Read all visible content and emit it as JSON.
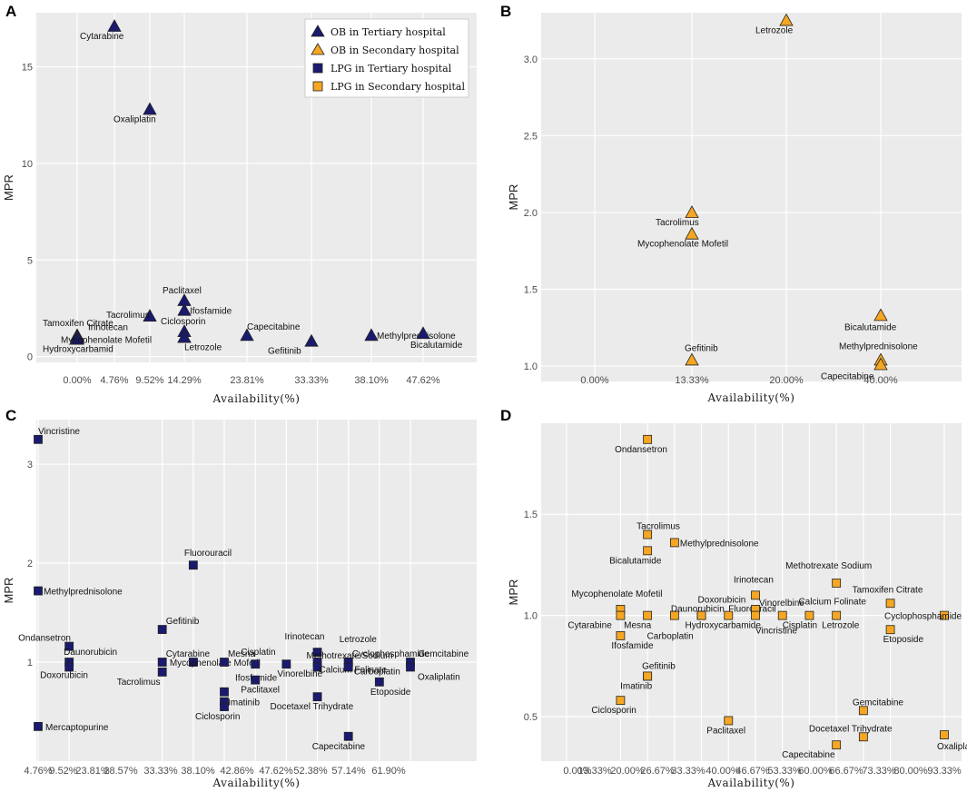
{
  "chart_data": [
    {
      "panel": "A",
      "type": "scatter",
      "xlabel": "Availability(%)",
      "ylabel": "MPR",
      "x_ticks": [
        "0.00%",
        "4.76%",
        "9.52%",
        "14.29%",
        "23.81%",
        "33.33%",
        "38.10%",
        "47.62%"
      ],
      "y_ticks": [
        0,
        5,
        10,
        15
      ],
      "ylim": [
        -0.3,
        17.8
      ],
      "colors": {
        "series": "#1a1a6e"
      },
      "legend": [
        {
          "label": "OB in Tertiary hospital",
          "shape": "triangle",
          "color": "#1a1a6e"
        },
        {
          "label": "OB in Secondary hospital",
          "shape": "triangle",
          "color": "#f5a623"
        },
        {
          "label": "LPG in Tertiary  hospital",
          "shape": "square",
          "color": "#1a1a6e"
        },
        {
          "label": "LPG in Secondary hospital",
          "shape": "square",
          "color": "#f5a623"
        }
      ],
      "points": [
        {
          "x": "4.76%",
          "y": 17.1,
          "label": "Cytarabine"
        },
        {
          "x": "9.52%",
          "y": 12.8,
          "label": "Oxaliplatin"
        },
        {
          "x": "14.29%",
          "y": 2.9,
          "label": "Paclitaxel"
        },
        {
          "x": "14.29%",
          "y": 2.4,
          "label": "Ifosfamide"
        },
        {
          "x": "9.52%",
          "y": 2.1,
          "label": "Tacrolimus"
        },
        {
          "x": "0.00%",
          "y": 1.1,
          "label": "Tamoxifen Citrate"
        },
        {
          "x": "0.00%",
          "y": 1.0,
          "label": "Irinotecan"
        },
        {
          "x": "0.00%",
          "y": 0.9,
          "label": "Hydroxycarbamid"
        },
        {
          "x": "14.29%",
          "y": 1.3,
          "label": "Ciclosporin"
        },
        {
          "x": "14.29%",
          "y": 1.0,
          "label": "Mycophenolate Mofetil"
        },
        {
          "x": "14.29%",
          "y": 1.0,
          "label": "Letrozole"
        },
        {
          "x": "23.81%",
          "y": 1.1,
          "label": "Capecitabine"
        },
        {
          "x": "33.33%",
          "y": 0.8,
          "label": "Gefitinib"
        },
        {
          "x": "38.10%",
          "y": 1.1,
          "label": "Methylprednisolone"
        },
        {
          "x": "47.62%",
          "y": 1.2,
          "label": "Bicalutamide"
        }
      ]
    },
    {
      "panel": "B",
      "type": "scatter",
      "xlabel": "Availability(%)",
      "ylabel": "MPR",
      "x_ticks": [
        "0.00%",
        "13.33%",
        "20.00%",
        "40.00%"
      ],
      "y_ticks": [
        1.0,
        1.5,
        2.0,
        2.5,
        3.0
      ],
      "ylim": [
        0.9,
        3.3
      ],
      "colors": {
        "series": "#f5a623"
      },
      "points": [
        {
          "x": "20.00%",
          "y": 3.25,
          "label": "Letrozole"
        },
        {
          "x": "13.33%",
          "y": 2.0,
          "label": "Tacrolimus"
        },
        {
          "x": "13.33%",
          "y": 1.86,
          "label": "Mycophenolate Mofetil"
        },
        {
          "x": "40.00%",
          "y": 1.33,
          "label": "Bicalutamide"
        },
        {
          "x": "13.33%",
          "y": 1.04,
          "label": "Gefitinib"
        },
        {
          "x": "40.00%",
          "y": 1.04,
          "label": "Methylprednisolone"
        },
        {
          "x": "40.00%",
          "y": 1.01,
          "label": "Capecitabine"
        }
      ]
    },
    {
      "panel": "C",
      "type": "scatter",
      "xlabel": "Availability(%)",
      "ylabel": "MPR",
      "x_ticks": [
        "4.76%",
        "9.52%",
        "23.81%",
        "28.57%",
        "33.33%",
        "38.10%",
        "42.86%",
        "47.62%",
        "52.38%",
        "57.14%",
        "61.90%"
      ],
      "y_ticks": [
        1,
        2,
        3
      ],
      "ylim": [
        0.0,
        3.45
      ],
      "colors": {
        "series": "#1a1a6e"
      },
      "points": [
        {
          "x": 4.76,
          "y": 3.25,
          "label": "Vincristine"
        },
        {
          "x": 28.57,
          "y": 1.98,
          "label": "Fluorouracil"
        },
        {
          "x": 4.76,
          "y": 1.72,
          "label": "Methylprednisolone"
        },
        {
          "x": 23.81,
          "y": 1.33,
          "label": "Gefitinib"
        },
        {
          "x": 9.52,
          "y": 1.16,
          "label": "Ondansetron"
        },
        {
          "x": 23.81,
          "y": 1.0,
          "label": "Cytarabine"
        },
        {
          "x": 9.52,
          "y": 1.0,
          "label": "Daunorubicin"
        },
        {
          "x": 9.52,
          "y": 0.95,
          "label": "Doxorubicin"
        },
        {
          "x": 23.81,
          "y": 0.9,
          "label": "Tacrolimus"
        },
        {
          "x": 28.57,
          "y": 1.0,
          "label": "Mycophenolate Mofetil"
        },
        {
          "x": 33.33,
          "y": 1.0,
          "label": "Mesna"
        },
        {
          "x": 33.33,
          "y": 0.7,
          "label": "Ifosfamide"
        },
        {
          "x": 33.33,
          "y": 0.6,
          "label": "Imatinib"
        },
        {
          "x": 33.33,
          "y": 0.55,
          "label": "Ciclosporin"
        },
        {
          "x": 38.1,
          "y": 0.98,
          "label": "Cisplatin"
        },
        {
          "x": 38.1,
          "y": 0.82,
          "label": "Paclitaxel"
        },
        {
          "x": 42.86,
          "y": 0.98,
          "label": "Vinorelbine"
        },
        {
          "x": 47.62,
          "y": 1.1,
          "label": "Irinotecan"
        },
        {
          "x": 47.62,
          "y": 1.0,
          "label": "Methotrexate Sodium"
        },
        {
          "x": 47.62,
          "y": 0.95,
          "label": "Calcium Folinate"
        },
        {
          "x": 47.62,
          "y": 0.65,
          "label": "Docetaxel Trihydrate"
        },
        {
          "x": 52.38,
          "y": 1.0,
          "label": "Letrozole"
        },
        {
          "x": 52.38,
          "y": 1.0,
          "label": "Cyclophosphamide"
        },
        {
          "x": 52.38,
          "y": 0.95,
          "label": "Carboplatin"
        },
        {
          "x": 57.14,
          "y": 0.8,
          "label": "Etoposide"
        },
        {
          "x": 61.9,
          "y": 1.0,
          "label": "Gemcitabine"
        },
        {
          "x": 61.9,
          "y": 0.95,
          "label": "Oxaliplatin"
        },
        {
          "x": 52.38,
          "y": 0.25,
          "label": "Capecitabine"
        },
        {
          "x": 4.76,
          "y": 0.35,
          "label": "Mercaptopurine"
        }
      ]
    },
    {
      "panel": "D",
      "type": "scatter",
      "xlabel": "Availability(%)",
      "ylabel": "MPR",
      "x_ticks": [
        "0.00%",
        "13.33%",
        "20.00%",
        "26.67%",
        "33.33%",
        "40.00%",
        "46.67%",
        "53.33%",
        "60.00%",
        "66.67%",
        "73.33%",
        "80.00%",
        "93.33%"
      ],
      "y_ticks": [
        0.5,
        1.0,
        1.5
      ],
      "ylim": [
        0.28,
        1.95
      ],
      "colors": {
        "series": "#f5a623"
      },
      "points": [
        {
          "x": 20.0,
          "y": 1.87,
          "label": "Ondansetron"
        },
        {
          "x": 20.0,
          "y": 1.4,
          "label": "Tacrolimus"
        },
        {
          "x": 20.0,
          "y": 1.32,
          "label": "Bicalutamide"
        },
        {
          "x": 26.67,
          "y": 1.36,
          "label": "Methylprednisolone"
        },
        {
          "x": 13.33,
          "y": 1.03,
          "label": "Mycophenolate Mofetil"
        },
        {
          "x": 13.33,
          "y": 1.0,
          "label": "Cytarabine"
        },
        {
          "x": 13.33,
          "y": 0.9,
          "label": "Ifosfamide"
        },
        {
          "x": 20.0,
          "y": 1.0,
          "label": "Mesna"
        },
        {
          "x": 26.67,
          "y": 1.0,
          "label": "Daunorubicin"
        },
        {
          "x": 33.33,
          "y": 1.0,
          "label": "Doxorubicin"
        },
        {
          "x": 33.33,
          "y": 1.0,
          "label": "Hydroxycarbamide"
        },
        {
          "x": 33.33,
          "y": 1.0,
          "label": "Carboplatin"
        },
        {
          "x": 40.0,
          "y": 1.0,
          "label": "Fluorouracil"
        },
        {
          "x": 46.67,
          "y": 1.1,
          "label": "Irinotecan"
        },
        {
          "x": 46.67,
          "y": 1.03,
          "label": "Vinorelbine"
        },
        {
          "x": 46.67,
          "y": 1.0,
          "label": "Vincristine"
        },
        {
          "x": 53.33,
          "y": 1.0,
          "label": "Cisplatin"
        },
        {
          "x": 60.0,
          "y": 1.0,
          "label": "Calcium Folinate"
        },
        {
          "x": 66.67,
          "y": 1.16,
          "label": "Methotrexate Sodium"
        },
        {
          "x": 66.67,
          "y": 1.0,
          "label": "Letrozole"
        },
        {
          "x": 80.0,
          "y": 1.06,
          "label": "Tamoxifen Citrate"
        },
        {
          "x": 93.33,
          "y": 1.0,
          "label": "Cyclophosphamide"
        },
        {
          "x": 80.0,
          "y": 0.93,
          "label": "Etoposide"
        },
        {
          "x": 20.0,
          "y": 0.7,
          "label": "Gefitinib"
        },
        {
          "x": 13.33,
          "y": 0.58,
          "label": "Ciclosporin"
        },
        {
          "x": 20.0,
          "y": 0.7,
          "label": "Imatinib"
        },
        {
          "x": 40.0,
          "y": 0.48,
          "label": "Paclitaxel"
        },
        {
          "x": 73.33,
          "y": 0.53,
          "label": "Gemcitabine"
        },
        {
          "x": 73.33,
          "y": 0.4,
          "label": "Docetaxel Trihydrate"
        },
        {
          "x": 66.67,
          "y": 0.36,
          "label": "Capecitabine"
        },
        {
          "x": 93.33,
          "y": 0.41,
          "label": "Oxaliplatin"
        }
      ]
    }
  ]
}
